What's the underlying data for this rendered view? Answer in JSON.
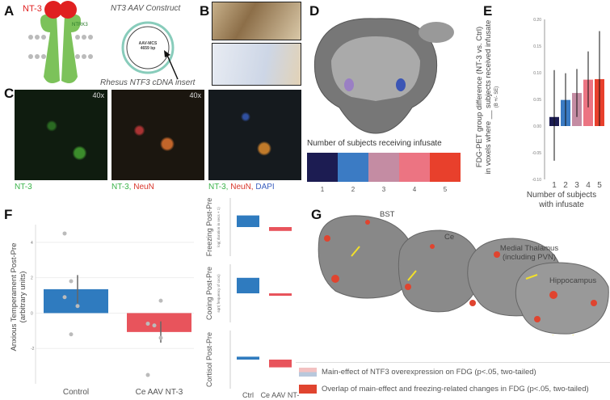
{
  "panels": {
    "a": "A",
    "b": "B",
    "c": "C",
    "d": "D",
    "e": "E",
    "f": "F",
    "g": "G"
  },
  "panel_a": {
    "ligand": "NT-3",
    "receptor": "NTRK3",
    "construct_title": "NT3 AAV Construct",
    "plasmid_name": "AAV-MCS",
    "plasmid_size": "4659 bp",
    "insert_label": "Rhesus NTF3 cDNA insert"
  },
  "panel_c": {
    "magnification": "40x",
    "captions": [
      [
        {
          "t": "NT-3",
          "c": "#3bb34a"
        }
      ],
      [
        {
          "t": "NT-3, ",
          "c": "#3bb34a"
        },
        {
          "t": "NeuN",
          "c": "#d9362b"
        }
      ],
      [
        {
          "t": "NT-3, ",
          "c": "#3bb34a"
        },
        {
          "t": "NeuN, ",
          "c": "#d9362b"
        },
        {
          "t": "DAPI",
          "c": "#3b5fbf"
        }
      ]
    ]
  },
  "panel_d": {
    "colorbar_title": "Number of subjects receiving infusate",
    "colorbar_ticks": [
      "1",
      "2",
      "3",
      "4",
      "5"
    ],
    "colors": [
      "#1c1c52",
      "#3b7bc4",
      "#c48ca3",
      "#ec7482",
      "#e8402c"
    ]
  },
  "chart_data": [
    {
      "id": "E",
      "type": "bar",
      "categories": [
        "1",
        "2",
        "3",
        "4",
        "5"
      ],
      "values": [
        0.017,
        0.049,
        0.062,
        0.087,
        0.088
      ],
      "error_low": [
        -0.065,
        0.0,
        0.017,
        0.035,
        0.0
      ],
      "error_high": [
        0.105,
        0.099,
        0.107,
        0.14,
        0.178
      ],
      "colors": [
        "#1c1c52",
        "#3b7bc4",
        "#c48ca3",
        "#ec7482",
        "#e8402c"
      ],
      "ylabel_line1": "FDG-PET group difference (NT-3 vs. Ctrl)",
      "ylabel_line2": "in voxels where __ subjects received infusate",
      "ylabel_sub": "(B +/- SE)",
      "xlabel_line1": "Number of subjects",
      "xlabel_line2": "with infusate",
      "ylim": [
        -0.1,
        0.2
      ],
      "yticks": [
        "0.20",
        "0.15",
        "0.10",
        "0.05",
        "0.00",
        "-0.05",
        "-0.10"
      ]
    },
    {
      "id": "F",
      "type": "bar",
      "categories": [
        "Control",
        "Ce AAV NT-3"
      ],
      "values": [
        1.35,
        -1.07
      ],
      "error": [
        0.8,
        0.6
      ],
      "colors": [
        "#2f7bbf",
        "#e8545c"
      ],
      "ylabel_line1": "Anxious Temperament Post-Pre",
      "ylabel_line2": "(arbitrary units)",
      "ylim": [
        -4,
        5
      ],
      "yticks": [
        "4",
        "2",
        "0",
        "-2"
      ],
      "points": [
        [
          0,
          4.5
        ],
        [
          0,
          1.8
        ],
        [
          0,
          0.4
        ],
        [
          0,
          0.9
        ],
        [
          0,
          -1.2
        ],
        [
          1,
          0.7
        ],
        [
          1,
          -0.6
        ],
        [
          1,
          -0.7
        ],
        [
          1,
          -1.4
        ],
        [
          1,
          -3.5
        ]
      ]
    },
    {
      "id": "F-side",
      "type": "bar",
      "categories": [
        "Ctrl",
        "Ce AAV NT-3"
      ],
      "panels": [
        {
          "ylabel": "Freezing Post-Pre",
          "sub": "log( duration in secs + 1)",
          "values": [
            0.6,
            -0.2
          ]
        },
        {
          "ylabel": "Cooing Post-Pre",
          "sub": "sqrt( frequency of coos)",
          "values": [
            0.8,
            0.0
          ]
        },
        {
          "ylabel": "Cortisol Post-Pre",
          "sub": "",
          "values": [
            0.15,
            -0.4
          ]
        }
      ]
    }
  ],
  "panel_g": {
    "regions": [
      "BST",
      "Ce",
      "Medial Thalamus",
      "(including PVN)",
      "Hippocampus"
    ],
    "legend": [
      {
        "label": "Main-effect of NTF3 overexpression on FDG (p<.05, two-tailed)"
      },
      {
        "label": "Overlap of main-effect and freezing-related changes in FDG (p<.05, two-tailed)",
        "color": "#e0442f"
      }
    ]
  }
}
